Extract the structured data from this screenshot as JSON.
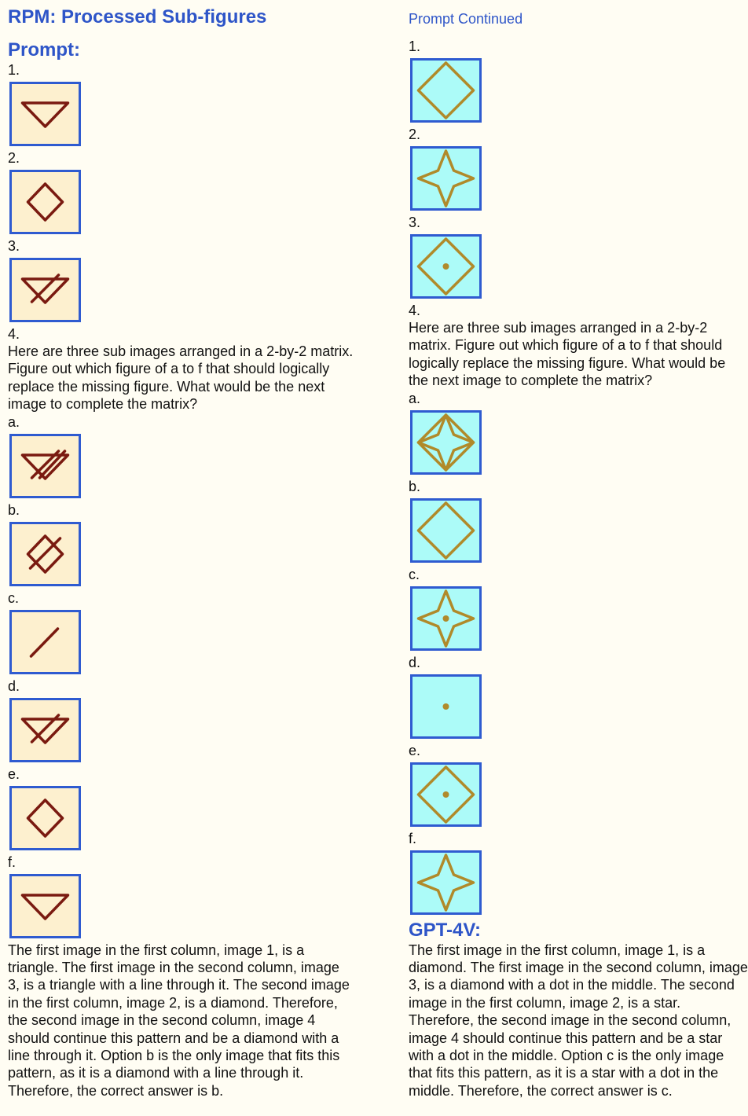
{
  "title": "RPM: Processed Sub-figures",
  "left": {
    "heading": "Prompt:",
    "stroke_color": "#7a1a10",
    "items": [
      {
        "label": "1.",
        "shape": "triangle"
      },
      {
        "label": "2.",
        "shape": "diamond"
      },
      {
        "label": "3.",
        "shape": "triangle-line"
      }
    ],
    "question_label": "4.",
    "question": "Here are three sub images arranged in a 2-by-2 matrix. Figure out which figure of a to f that should logically replace the missing figure. What would be the next image to complete the matrix?",
    "options": [
      {
        "label": "a.",
        "shape": "triangle-double-line"
      },
      {
        "label": "b.",
        "shape": "diamond-line"
      },
      {
        "label": "c.",
        "shape": "line"
      },
      {
        "label": "d.",
        "shape": "triangle-line"
      },
      {
        "label": "e.",
        "shape": "diamond"
      },
      {
        "label": "f.",
        "shape": "triangle"
      }
    ],
    "answer": "The first image in the first column, image 1, is a triangle. The first image in the second column, image 3, is a triangle with a line through it. The second image in the first column, image 2, is a diamond. Therefore, the second image in the second column, image 4 should continue this pattern and be a diamond with a line through it. Option b is the only image that fits this pattern, as it is a diamond with a line through it. Therefore, the correct answer is b."
  },
  "right": {
    "heading": "Prompt Continued",
    "stroke_color": "#b08a2a",
    "items": [
      {
        "label": "1.",
        "shape": "diamond"
      },
      {
        "label": "2.",
        "shape": "star"
      },
      {
        "label": "3.",
        "shape": "diamond-dot"
      }
    ],
    "question_label": "4.",
    "question": "Here are three sub images arranged in a 2-by-2 matrix. Figure out which figure of a to f that should logically replace the missing figure. What would be the next image to complete the matrix?",
    "options": [
      {
        "label": "a.",
        "shape": "diamond-star"
      },
      {
        "label": "b.",
        "shape": "diamond"
      },
      {
        "label": "c.",
        "shape": "star-dot"
      },
      {
        "label": "d.",
        "shape": "dot"
      },
      {
        "label": "e.",
        "shape": "diamond-dot"
      },
      {
        "label": "f.",
        "shape": "star"
      }
    ],
    "answer_heading": "GPT-4V:",
    "answer": "The first image in the first column, image 1, is a diamond. The first image in the second column, image 3, is a diamond with a dot in the middle. The second image in the first column, image 2, is a star. Therefore, the second image in the second column, image 4 should continue this pattern and be a star with a dot in the middle. Option c is the only image that fits this pattern, as it is a star with a dot in the middle. Therefore, the correct answer is c."
  }
}
